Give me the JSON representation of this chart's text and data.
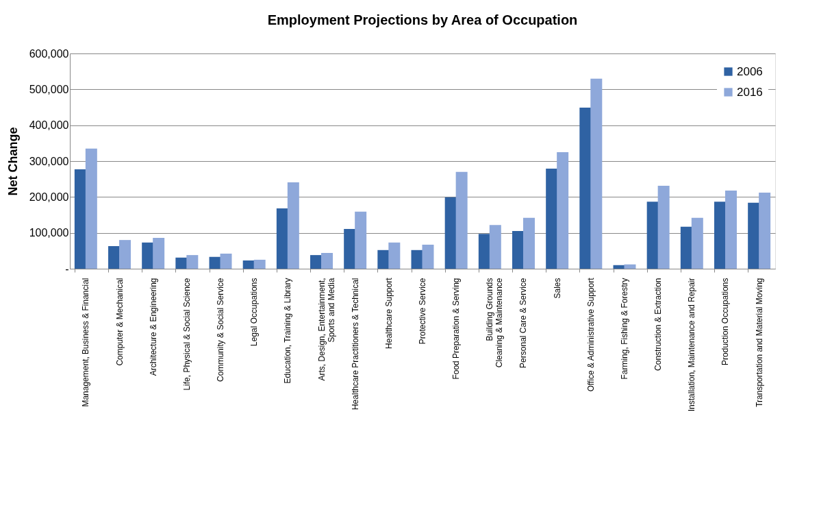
{
  "chart_data": {
    "type": "bar",
    "title": "Employment Projections by Area of Occupation",
    "ylabel": "Net Change",
    "categories": [
      "Management, Business & Financial",
      "Computer & Mechanical",
      "Architecture & Engineering",
      "Life, Physical & Social Science",
      "Community & Social Service",
      "Legal Occupations",
      "Education, Training & Library",
      "Arts, Design, Entertainment,\nSports and Media",
      "Healthcare Practitioners & Technical",
      "Healthcare Support",
      "Protective Service",
      "Food Preparation & Serving",
      "Building Grounds\nCleaning & Maintenance",
      "Personal Care & Service",
      "Sales",
      "Office & Administrative Support",
      "Farming, Fishing & Forestry",
      "Construction & Extraction",
      "Installation, Maintenance and Repair",
      "Production Occupations",
      "Transportation and Material Moving"
    ],
    "series": [
      {
        "name": "2006",
        "color": "#2f62a3",
        "values": [
          277000,
          63000,
          73000,
          31000,
          33000,
          23000,
          168000,
          38000,
          111000,
          52000,
          52000,
          199000,
          97000,
          105000,
          279000,
          449000,
          10000,
          187000,
          117000,
          187000,
          184000
        ]
      },
      {
        "name": "2016",
        "color": "#8ea8da",
        "values": [
          335000,
          80000,
          86000,
          38000,
          42000,
          25000,
          241000,
          44000,
          159000,
          73000,
          67000,
          270000,
          122000,
          142000,
          325000,
          530000,
          12000,
          231000,
          142000,
          218000,
          212000
        ]
      }
    ],
    "ylim": [
      0,
      600000
    ],
    "yticks": [
      {
        "value": 0,
        "label": "-"
      },
      {
        "value": 100000,
        "label": "100,000"
      },
      {
        "value": 200000,
        "label": "200,000"
      },
      {
        "value": 300000,
        "label": "300,000"
      },
      {
        "value": 400000,
        "label": "400,000"
      },
      {
        "value": 500000,
        "label": "500,000"
      },
      {
        "value": 600000,
        "label": "600,000"
      }
    ],
    "grid": "y",
    "legend": "top right"
  }
}
